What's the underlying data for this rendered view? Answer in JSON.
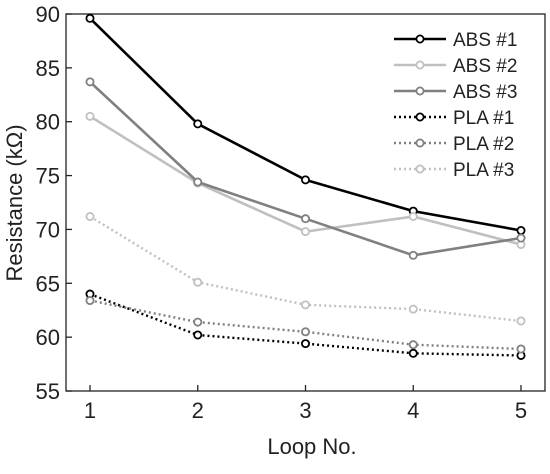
{
  "chart_data": {
    "type": "line",
    "xlabel": "Loop No.",
    "ylabel": "Resistance (kΩ)",
    "xlim": [
      1,
      5
    ],
    "ylim": [
      55,
      90
    ],
    "x_ticks": [
      1,
      2,
      3,
      4,
      5
    ],
    "y_ticks": [
      55,
      60,
      65,
      70,
      75,
      80,
      85,
      90
    ],
    "x": [
      1,
      2,
      3,
      4,
      5
    ],
    "grid": false,
    "legend_position": "top-right",
    "series": [
      {
        "name": "ABS #1",
        "values": [
          89.6,
          79.8,
          74.6,
          71.7,
          69.9
        ],
        "color": "#000000",
        "line_style": "solid",
        "marker": "hollow-circle"
      },
      {
        "name": "ABS #2",
        "values": [
          80.5,
          74.3,
          69.8,
          71.2,
          68.6
        ],
        "color": "#c0c0c0",
        "line_style": "solid",
        "marker": "hollow-circle"
      },
      {
        "name": "ABS #3",
        "values": [
          83.7,
          74.4,
          71.0,
          67.6,
          69.2
        ],
        "color": "#808080",
        "line_style": "solid",
        "marker": "hollow-circle"
      },
      {
        "name": "PLA #1",
        "values": [
          64.0,
          60.2,
          59.4,
          58.5,
          58.3
        ],
        "color": "#000000",
        "line_style": "dotted",
        "marker": "hollow-circle"
      },
      {
        "name": "PLA #2",
        "values": [
          63.4,
          61.4,
          60.5,
          59.3,
          58.9
        ],
        "color": "#808080",
        "line_style": "dotted",
        "marker": "hollow-circle"
      },
      {
        "name": "PLA #3",
        "values": [
          71.2,
          65.1,
          63.0,
          62.6,
          61.5
        ],
        "color": "#c0c0c0",
        "line_style": "dotted",
        "marker": "hollow-circle"
      }
    ]
  }
}
